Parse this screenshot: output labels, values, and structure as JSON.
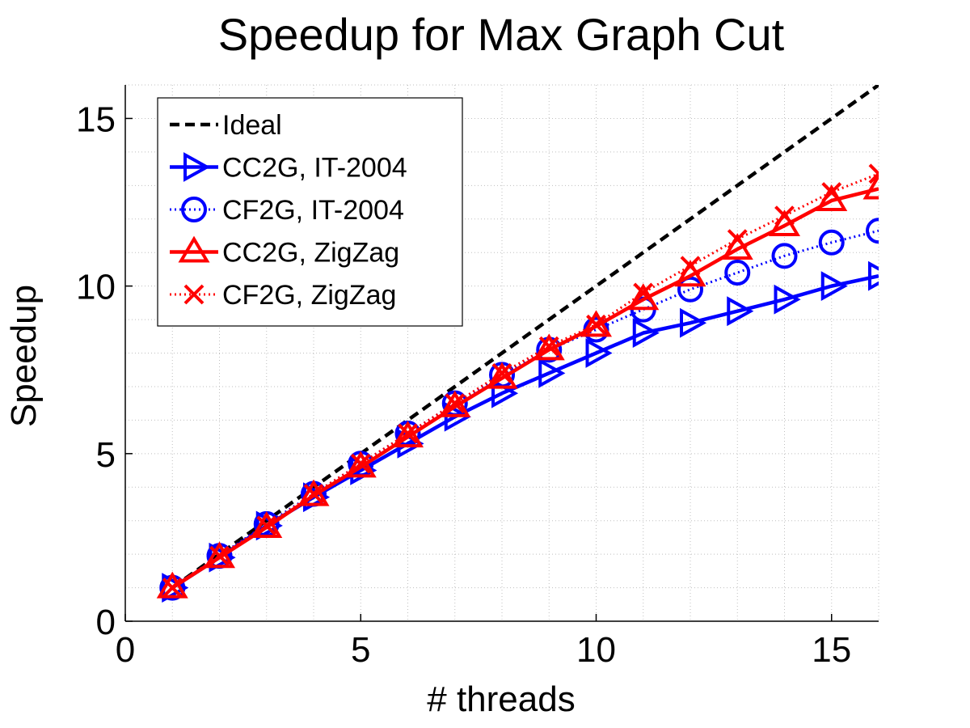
{
  "chart_data": {
    "type": "line",
    "title": "Speedup for Max Graph Cut",
    "xlabel": "# threads",
    "ylabel": "Speedup",
    "xlim": [
      0,
      16
    ],
    "ylim": [
      0,
      16
    ],
    "xticks": [
      0,
      5,
      10,
      15
    ],
    "yticks": [
      0,
      5,
      10,
      15
    ],
    "grid": "minor dotted",
    "legend_position": "top-left",
    "series": [
      {
        "name": "Ideal",
        "color": "#000000",
        "line_style": "dashed",
        "marker": "none",
        "x": [
          1,
          16
        ],
        "y": [
          1,
          16
        ]
      },
      {
        "name": "CC2G, IT-2004",
        "color": "#0000ff",
        "line_style": "solid",
        "marker": "triangle-right",
        "x": [
          1,
          2,
          3,
          4,
          5,
          6,
          7,
          8,
          9,
          10,
          11,
          12,
          13,
          14,
          15,
          16
        ],
        "y": [
          1.0,
          1.9,
          2.85,
          3.7,
          4.5,
          5.3,
          6.1,
          6.8,
          7.4,
          8.0,
          8.6,
          8.9,
          9.25,
          9.6,
          10.0,
          10.3
        ]
      },
      {
        "name": "CF2G, IT-2004",
        "color": "#0000ff",
        "line_style": "dotted",
        "marker": "circle",
        "x": [
          1,
          2,
          3,
          4,
          5,
          6,
          7,
          8,
          9,
          10,
          11,
          12,
          13,
          14,
          15,
          16
        ],
        "y": [
          1.0,
          1.95,
          2.9,
          3.8,
          4.7,
          5.6,
          6.5,
          7.35,
          8.1,
          8.7,
          9.3,
          9.9,
          10.4,
          10.9,
          11.3,
          11.65
        ]
      },
      {
        "name": "CC2G, ZigZag",
        "color": "#ff0000",
        "line_style": "solid",
        "marker": "triangle-up",
        "x": [
          1,
          2,
          3,
          4,
          5,
          6,
          7,
          8,
          9,
          10,
          11,
          12,
          13,
          14,
          15,
          16
        ],
        "y": [
          1.0,
          1.9,
          2.8,
          3.75,
          4.6,
          5.5,
          6.4,
          7.25,
          8.1,
          8.8,
          9.6,
          10.3,
          11.1,
          11.8,
          12.55,
          12.9
        ]
      },
      {
        "name": "CF2G, ZigZag",
        "color": "#ff0000",
        "line_style": "dotted",
        "marker": "x",
        "x": [
          1,
          2,
          3,
          4,
          5,
          6,
          7,
          8,
          9,
          10,
          11,
          12,
          13,
          14,
          15,
          16
        ],
        "y": [
          1.0,
          1.95,
          2.85,
          3.8,
          4.7,
          5.6,
          6.5,
          7.4,
          8.2,
          8.85,
          9.8,
          10.6,
          11.4,
          12.1,
          12.8,
          13.35
        ]
      }
    ]
  }
}
